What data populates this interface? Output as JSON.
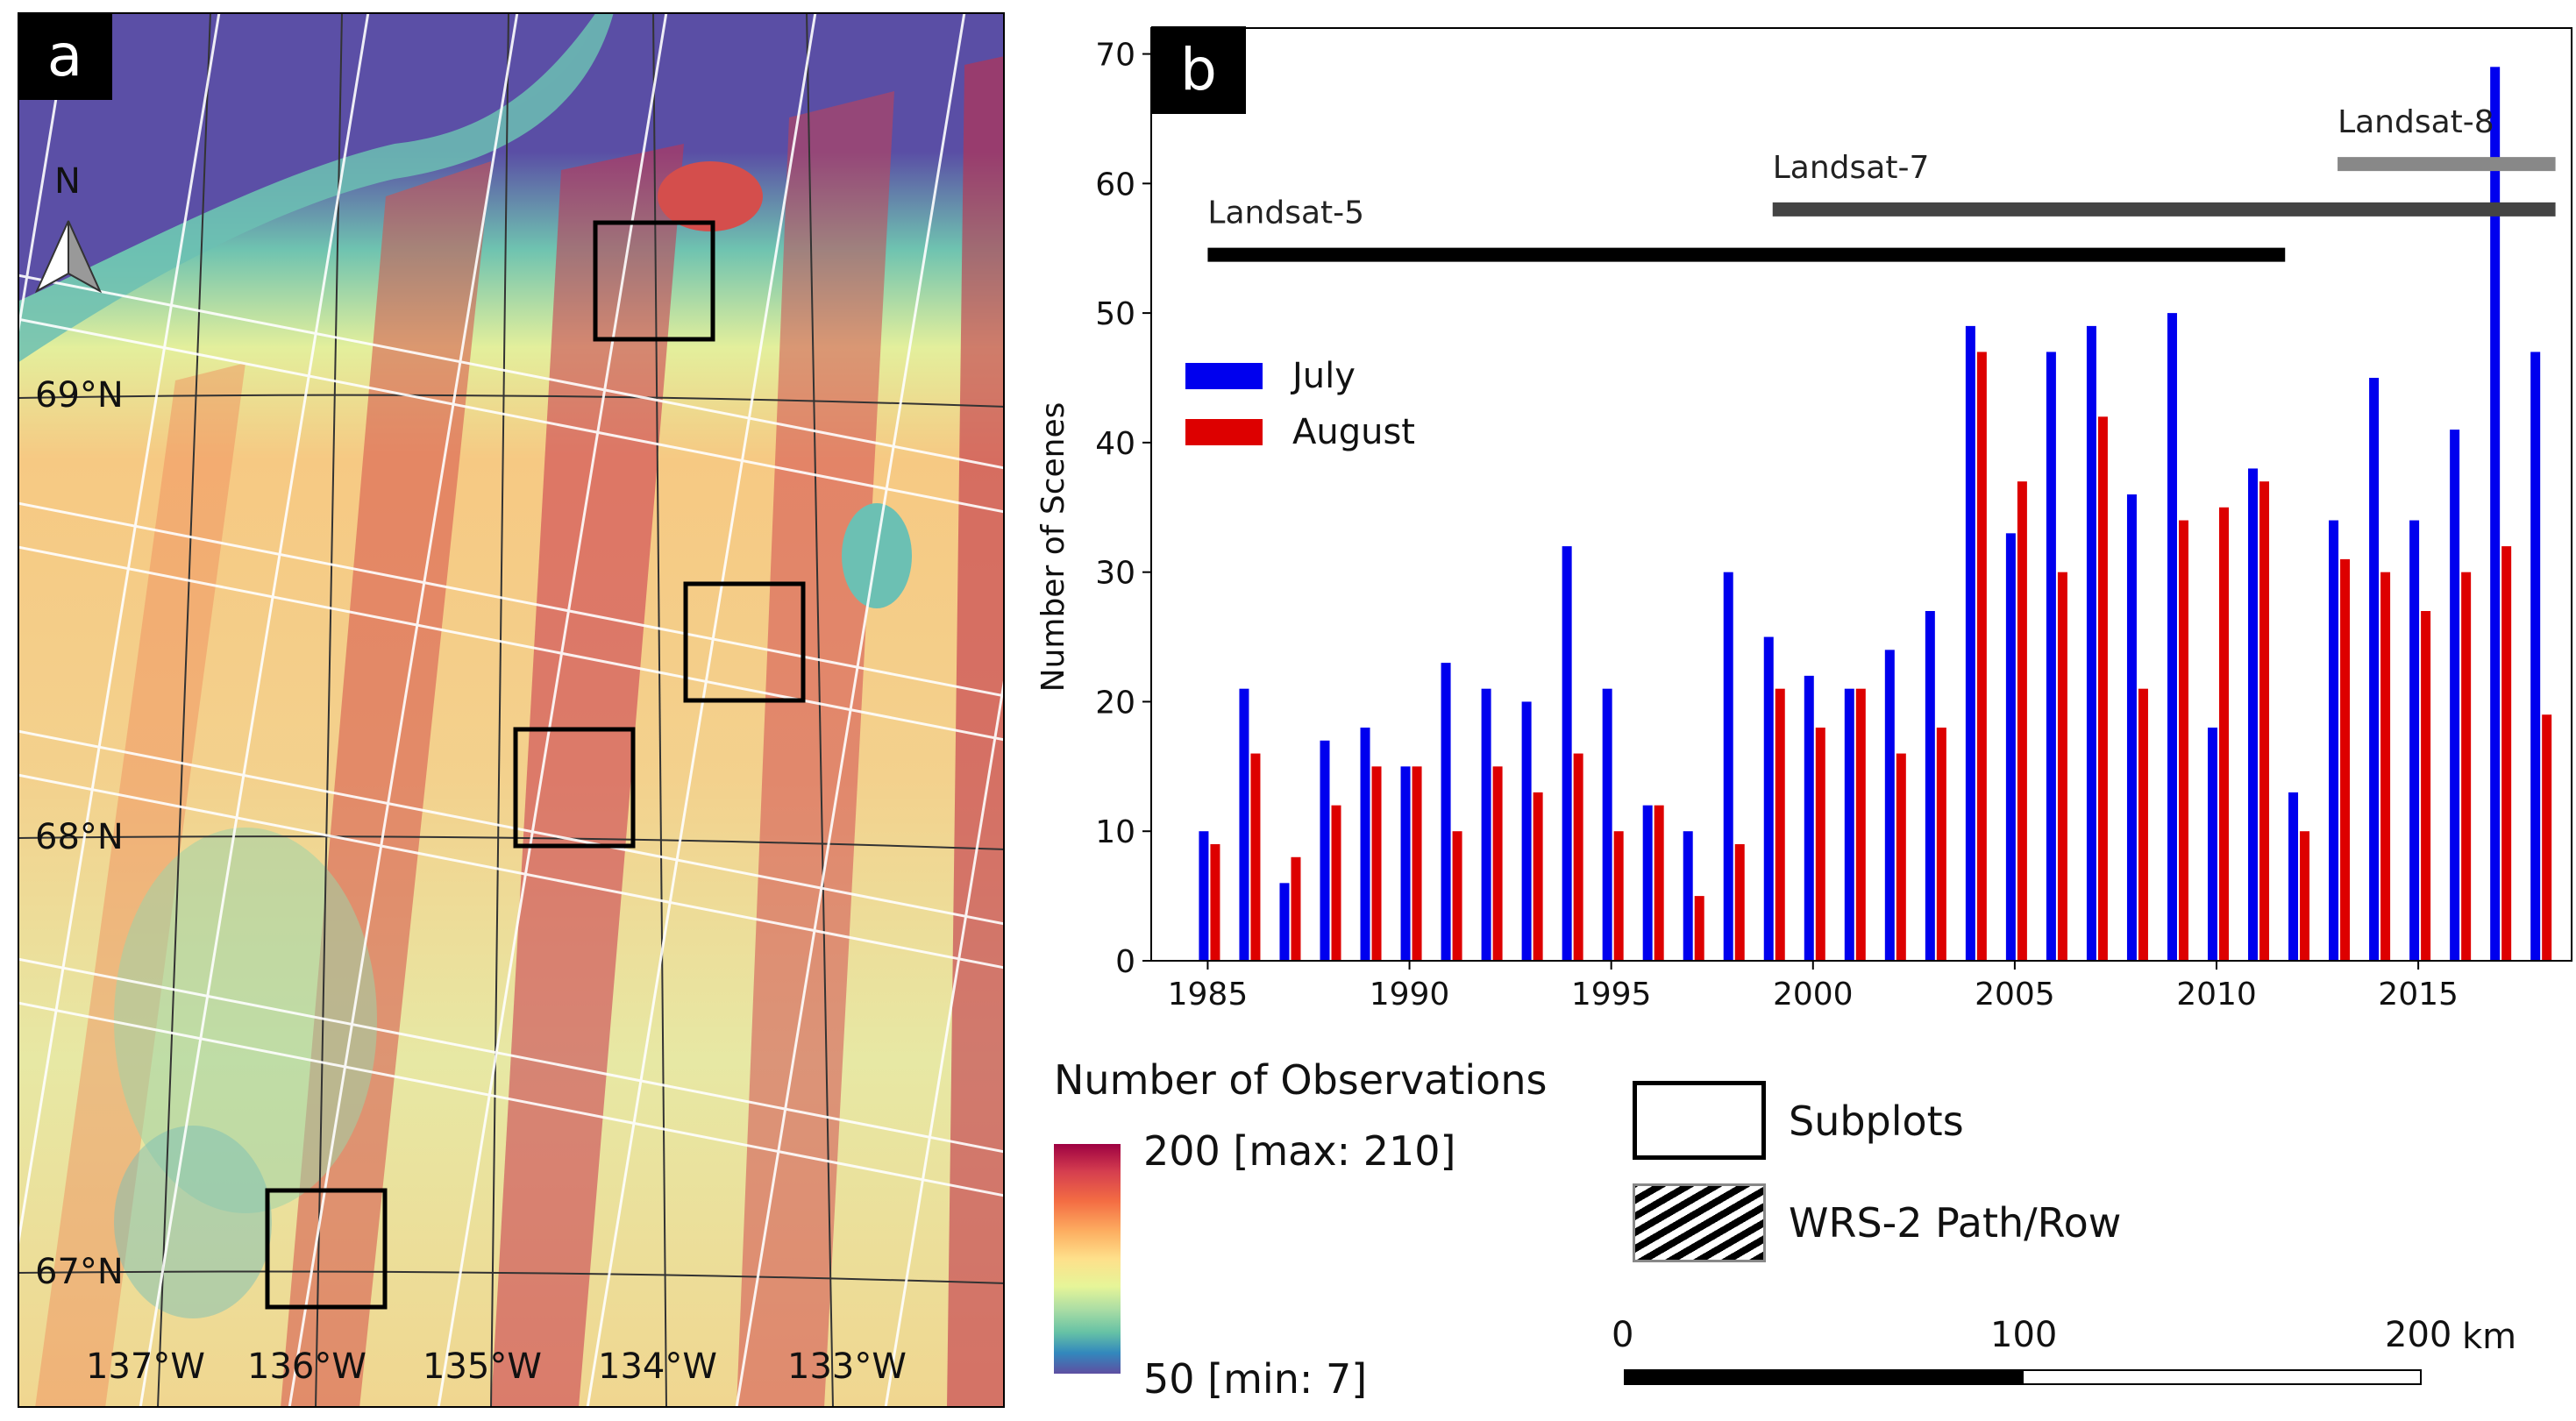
{
  "panel_a": {
    "tag": "a",
    "north_label": "N",
    "lat_labels": [
      "69°N",
      "68°N",
      "67°N"
    ],
    "lon_labels": [
      "137°W",
      "136°W",
      "135°W",
      "134°W",
      "133°W"
    ]
  },
  "chart_data": {
    "type": "bar",
    "tag": "b",
    "ylabel": "Number of Scenes",
    "xlabel": "",
    "ylim": [
      0,
      72
    ],
    "yticks": [
      0,
      10,
      20,
      30,
      40,
      50,
      60,
      70
    ],
    "xticks": [
      1985,
      1990,
      1995,
      2000,
      2005,
      2010,
      2015
    ],
    "categories": [
      1985,
      1986,
      1987,
      1988,
      1989,
      1990,
      1991,
      1992,
      1993,
      1994,
      1995,
      1996,
      1997,
      1998,
      1999,
      2000,
      2001,
      2002,
      2003,
      2004,
      2005,
      2006,
      2007,
      2008,
      2009,
      2010,
      2011,
      2012,
      2013,
      2014,
      2015,
      2016,
      2017,
      2018
    ],
    "series": [
      {
        "name": "July",
        "color": "#0000ee",
        "values": [
          10,
          21,
          6,
          17,
          18,
          15,
          23,
          21,
          20,
          32,
          21,
          12,
          10,
          30,
          25,
          22,
          21,
          24,
          27,
          49,
          33,
          47,
          49,
          36,
          50,
          18,
          38,
          13,
          34,
          45,
          34,
          41,
          69,
          47
        ]
      },
      {
        "name": "August",
        "color": "#dd0000",
        "values": [
          9,
          16,
          8,
          12,
          15,
          15,
          10,
          15,
          13,
          16,
          10,
          12,
          5,
          9,
          21,
          18,
          21,
          16,
          18,
          47,
          37,
          30,
          42,
          21,
          34,
          35,
          37,
          10,
          31,
          30,
          27,
          30,
          32,
          19
        ]
      }
    ],
    "legend_position": "upper-left",
    "missions": [
      {
        "name": "Landsat-5",
        "start": 1985,
        "end": 2011.7,
        "level": 54.5,
        "color": "#000000"
      },
      {
        "name": "Landsat-7",
        "start": 1999,
        "end": 2018.4,
        "level": 58,
        "color": "#444444"
      },
      {
        "name": "Landsat-8",
        "start": 2013,
        "end": 2018.4,
        "level": 61.5,
        "color": "#888888"
      }
    ]
  },
  "legend": {
    "colorbar_title": "Number of Observations",
    "colorbar_max": "200 [max: 210]",
    "colorbar_min": "50 [min: 7]",
    "subplots_label": "Subplots",
    "wrs_label": "WRS-2 Path/Row",
    "scale_ticks": [
      "0",
      "100",
      "200"
    ],
    "scale_unit": "km"
  }
}
